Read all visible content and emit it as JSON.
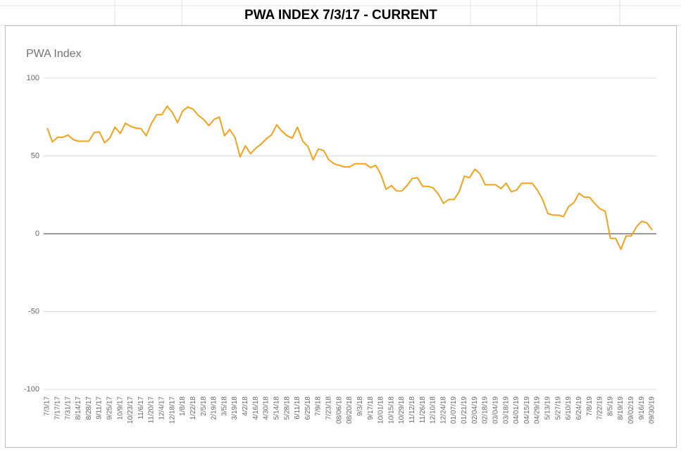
{
  "sheet": {
    "title": "PWA INDEX 7/3/17 - CURRENT"
  },
  "chart_data": {
    "type": "line",
    "title": "PWA Index",
    "categories": [
      "7/3/17",
      null,
      "7/17/17",
      null,
      "7/31/17",
      null,
      "8/14/17",
      null,
      "8/28/17",
      null,
      "9/11/17",
      null,
      "9/25/17",
      null,
      "10/9/17",
      null,
      "10/23/17",
      null,
      "11/6/17",
      null,
      "11/20/17",
      null,
      "12/4/17",
      null,
      "12/18/17",
      null,
      "1/8/18",
      null,
      "1/22/18",
      null,
      "2/5/18",
      null,
      "2/19/18",
      null,
      "3/5/18",
      null,
      "3/19/18",
      null,
      "4/2/18",
      null,
      "4/16/18",
      null,
      "4/30/18",
      null,
      "5/14/18",
      null,
      "5/28/18",
      null,
      "6/11/18",
      null,
      "6/25/18",
      null,
      "7/9/18",
      null,
      "7/23/18",
      null,
      "08/06/18",
      null,
      "08/20/18",
      null,
      "9/3/18",
      null,
      "9/17/18",
      null,
      "10/01/18",
      null,
      "10/15/18",
      null,
      "10/29/18",
      null,
      "11/12/18",
      null,
      "11/26/18",
      null,
      "12/10/18",
      null,
      "12/24/18",
      null,
      "01/07/19",
      null,
      "01/21/19",
      null,
      "02/04/19",
      null,
      "02/18/19",
      null,
      "03/04/19",
      null,
      "03/18/19",
      null,
      "04/01/19",
      null,
      "04/15/19",
      null,
      "04/29/19",
      null,
      "5/13/19",
      null,
      "5/27/19",
      null,
      "6/10/19",
      null,
      "6/24/19",
      null,
      "7/8/19",
      null,
      "7/22/19",
      null,
      "8/5/19",
      null,
      "8/19/19",
      null,
      "09/02/19",
      null,
      "9/16/19",
      null,
      "09/30/19"
    ],
    "series": [
      {
        "name": "PWA Index",
        "color": "#f4a21c",
        "values": [
          68,
          59,
          62,
          62,
          63.5,
          60.5,
          59.5,
          59.5,
          59.5,
          65,
          65.5,
          58.5,
          61.5,
          68.5,
          64.5,
          71,
          69,
          68,
          67.5,
          63,
          71,
          76.5,
          76.5,
          82,
          78,
          71.5,
          79,
          81.5,
          80,
          76,
          73.5,
          69.5,
          73.5,
          75,
          63,
          67,
          62,
          49.5,
          56.5,
          51.5,
          55,
          57.5,
          61,
          63.5,
          70,
          66,
          63,
          61.5,
          68.5,
          59.5,
          56,
          47.5,
          54.5,
          53.5,
          47.5,
          45,
          44,
          43,
          43,
          45,
          45,
          45,
          42.5,
          44,
          38,
          28.5,
          31,
          27.5,
          27.5,
          31,
          35.5,
          36,
          30.5,
          30.5,
          29.5,
          25.5,
          19.5,
          22,
          22,
          27,
          37,
          36,
          41.5,
          38.5,
          31.5,
          31.5,
          31.5,
          29,
          32.5,
          27,
          28,
          32.5,
          32.5,
          32.5,
          28,
          22,
          13,
          12,
          12,
          11,
          17.5,
          20,
          26,
          23.5,
          23.5,
          19.5,
          16,
          14.5,
          -3,
          -3,
          -10,
          -1.5,
          -1.5,
          4.5,
          8,
          7,
          2.5
        ]
      }
    ],
    "ylim": [
      -100,
      100
    ],
    "yticks": [
      -100,
      -50,
      0,
      50,
      100
    ],
    "grid": true
  }
}
